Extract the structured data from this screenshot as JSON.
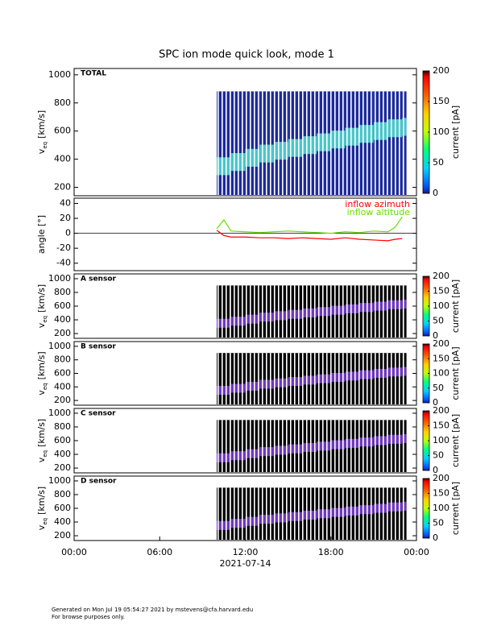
{
  "title": "SPC ion mode quick look, mode 1",
  "footer": [
    "Generated on Mon Jul 19 05:54:27 2021 by mstevens@cfa.harvard.edu",
    "For browse purposes only."
  ],
  "chart_data": [
    {
      "type": "spectrogram",
      "label": "TOTAL",
      "ylabel": [
        "v",
        "eq",
        "[km/s]"
      ],
      "x": [
        10,
        11,
        12,
        13,
        14,
        15,
        16,
        17,
        18,
        19,
        20,
        21,
        22,
        23
      ],
      "values": [
        350,
        380,
        410,
        440,
        460,
        480,
        500,
        520,
        540,
        560,
        580,
        600,
        620,
        630
      ],
      "xlim": [
        0,
        24
      ],
      "ylim": [
        140,
        1045
      ],
      "yticks": [
        200,
        400,
        600,
        800,
        1000
      ],
      "background_color": "#1c2a9c",
      "band_color": "#4fd8d0",
      "zlim": [
        0,
        200
      ],
      "zticks": [
        0,
        50,
        100,
        150,
        200
      ],
      "zlabel": "current [pA]"
    },
    {
      "type": "line",
      "ylabel": "angle [°]",
      "x": [
        10,
        10.5,
        11,
        12,
        13,
        14,
        15,
        16,
        17,
        18,
        19,
        20,
        21,
        22,
        22.5,
        23
      ],
      "series": [
        {
          "name": "inflow azimuth",
          "color": "#ff0000",
          "values": [
            4,
            -3,
            -5,
            -5,
            -6,
            -6,
            -7,
            -6,
            -7,
            -8,
            -6,
            -8,
            -9,
            -10,
            -8,
            -7
          ]
        },
        {
          "name": "inflow altitude",
          "color": "#66dd00",
          "values": [
            6,
            18,
            3,
            2,
            1,
            2,
            3,
            2,
            1,
            0,
            2,
            1,
            3,
            2,
            8,
            22
          ]
        }
      ],
      "xlim": [
        0,
        24
      ],
      "ylim": [
        -50,
        47
      ],
      "yticks": [
        -40,
        -20,
        0,
        20,
        40
      ]
    },
    {
      "type": "spectrogram",
      "label": "A sensor",
      "ylabel": [
        "v",
        "eq",
        "[km/s]"
      ],
      "x": [
        10,
        11,
        12,
        13,
        14,
        15,
        16,
        17,
        18,
        19,
        20,
        21,
        22,
        23
      ],
      "values": [
        350,
        380,
        410,
        440,
        460,
        480,
        500,
        520,
        540,
        560,
        580,
        600,
        620,
        630
      ],
      "xlim": [
        0,
        24
      ],
      "ylim": [
        130,
        1070
      ],
      "yticks": [
        200,
        400,
        600,
        800,
        1000
      ],
      "background_color": "#000000",
      "band_color": "#7a3fd0",
      "zlim": [
        0,
        200
      ],
      "zticks": [
        0,
        50,
        100,
        150,
        200
      ],
      "zlabel": "current [pA]"
    },
    {
      "type": "spectrogram",
      "label": "B sensor",
      "ylabel": [
        "v",
        "eq",
        "[km/s]"
      ],
      "x": [
        10,
        11,
        12,
        13,
        14,
        15,
        16,
        17,
        18,
        19,
        20,
        21,
        22,
        23
      ],
      "values": [
        350,
        380,
        410,
        440,
        460,
        480,
        500,
        520,
        540,
        560,
        580,
        600,
        620,
        630
      ],
      "xlim": [
        0,
        24
      ],
      "ylim": [
        130,
        1070
      ],
      "yticks": [
        200,
        400,
        600,
        800,
        1000
      ],
      "background_color": "#000000",
      "band_color": "#7a3fd0",
      "zlim": [
        0,
        200
      ],
      "zticks": [
        0,
        50,
        100,
        150,
        200
      ],
      "zlabel": "current [pA]"
    },
    {
      "type": "spectrogram",
      "label": "C sensor",
      "ylabel": [
        "v",
        "eq",
        "[km/s]"
      ],
      "x": [
        10,
        11,
        12,
        13,
        14,
        15,
        16,
        17,
        18,
        19,
        20,
        21,
        22,
        23
      ],
      "values": [
        350,
        380,
        410,
        440,
        460,
        480,
        500,
        520,
        540,
        560,
        580,
        600,
        620,
        630
      ],
      "xlim": [
        0,
        24
      ],
      "ylim": [
        130,
        1070
      ],
      "yticks": [
        200,
        400,
        600,
        800,
        1000
      ],
      "background_color": "#000000",
      "band_color": "#7a3fd0",
      "zlim": [
        0,
        200
      ],
      "zticks": [
        0,
        50,
        100,
        150,
        200
      ],
      "zlabel": "current [pA]"
    },
    {
      "type": "spectrogram",
      "label": "D sensor",
      "ylabel": [
        "v",
        "eq",
        "[km/s]"
      ],
      "x": [
        10,
        11,
        12,
        13,
        14,
        15,
        16,
        17,
        18,
        19,
        20,
        21,
        22,
        23
      ],
      "values": [
        350,
        380,
        410,
        440,
        460,
        480,
        500,
        520,
        540,
        560,
        580,
        600,
        620,
        630
      ],
      "xlim": [
        0,
        24
      ],
      "ylim": [
        130,
        1070
      ],
      "yticks": [
        200,
        400,
        600,
        800,
        1000
      ],
      "background_color": "#000000",
      "band_color": "#7a3fd0",
      "zlim": [
        0,
        200
      ],
      "zticks": [
        0,
        50,
        100,
        150,
        200
      ],
      "zlabel": "current [pA]",
      "xticks": [
        {
          "value": 0,
          "label": "00:00"
        },
        {
          "value": 6,
          "label": "06:00"
        },
        {
          "value": 12,
          "label": "12:00"
        },
        {
          "value": 18,
          "label": "18:00"
        },
        {
          "value": 24,
          "label": "00:00"
        }
      ],
      "xlabel": "2021-07-14"
    }
  ]
}
